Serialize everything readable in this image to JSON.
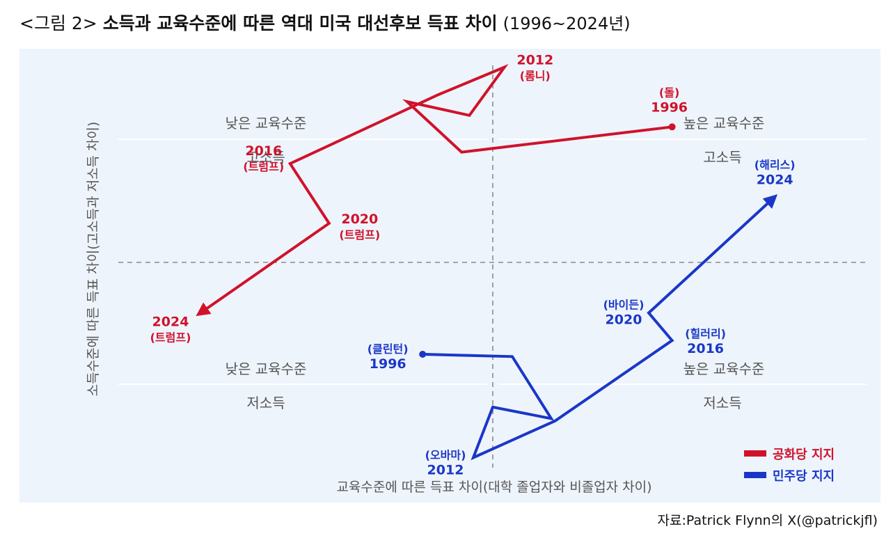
{
  "title": {
    "prefix": "<그림 2>",
    "main": "소득과 교육수준에 따른 역대 미국 대선후보 득표 차이",
    "range": "(1996~2024년)"
  },
  "source": "자료:Patrick Flynn의 X(@patrickjfl)",
  "colors": {
    "republican": "#d0122b",
    "democrat": "#1a37c8",
    "quadrant_text": "#555555",
    "axis_label": "#555555",
    "background": "#eef4fb"
  },
  "chart_data": {
    "type": "line",
    "xlabel": "교육수준에 따른 득표 차이(대학 졸업자와 비졸업자 차이)",
    "ylabel": "소득수준에 따른 득표 차이(고소득과 저소득 차이)",
    "xlim": [
      -1,
      1
    ],
    "ylim": [
      -1,
      1
    ],
    "grid": false,
    "legend_position": "bottom-right",
    "quadrants": [
      {
        "position": "top-left",
        "education": "낮은 교육수준",
        "income": "고소득"
      },
      {
        "position": "top-right",
        "education": "높은 교육수준",
        "income": "고소득"
      },
      {
        "position": "bottom-left",
        "education": "낮은 교육수준",
        "income": "저소득"
      },
      {
        "position": "bottom-right",
        "education": "높은 교육수준",
        "income": "저소득"
      }
    ],
    "series": [
      {
        "name": "공화당 지지",
        "color": "#d0122b",
        "points": [
          {
            "year": "1996",
            "candidate": "(돌)",
            "x": 0.46,
            "y": 0.59
          },
          {
            "year": "",
            "candidate": "",
            "x": -0.08,
            "y": 0.48
          },
          {
            "year": "",
            "candidate": "",
            "x": -0.22,
            "y": 0.7
          },
          {
            "year": "",
            "candidate": "",
            "x": -0.06,
            "y": 0.64
          },
          {
            "year": "2012",
            "candidate": "(롬니)",
            "x": 0.03,
            "y": 0.85
          },
          {
            "year": "",
            "candidate": "",
            "x": -0.14,
            "y": 0.73
          },
          {
            "year": "2016",
            "candidate": "(트럼프)",
            "x": -0.52,
            "y": 0.43
          },
          {
            "year": "2020",
            "candidate": "(트럼프)",
            "x": -0.42,
            "y": 0.17
          },
          {
            "year": "2024",
            "candidate": "(트럼프)",
            "x": -0.75,
            "y": -0.22
          }
        ]
      },
      {
        "name": "민주당 지지",
        "color": "#1a37c8",
        "points": [
          {
            "year": "1996",
            "candidate": "(클린턴)",
            "x": -0.18,
            "y": -0.4
          },
          {
            "year": "",
            "candidate": "",
            "x": 0.05,
            "y": -0.41
          },
          {
            "year": "",
            "candidate": "",
            "x": 0.15,
            "y": -0.68
          },
          {
            "year": "",
            "candidate": "",
            "x": 0.0,
            "y": -0.63
          },
          {
            "year": "2012",
            "candidate": "(오바마)",
            "x": -0.05,
            "y": -0.85
          },
          {
            "year": "",
            "candidate": "",
            "x": 0.16,
            "y": -0.69
          },
          {
            "year": "2016",
            "candidate": "(힐러리)",
            "x": 0.46,
            "y": -0.34
          },
          {
            "year": "2020",
            "candidate": "(바이든)",
            "x": 0.4,
            "y": -0.22
          },
          {
            "year": "2024",
            "candidate": "(해리스)",
            "x": 0.72,
            "y": 0.28
          }
        ]
      }
    ]
  }
}
